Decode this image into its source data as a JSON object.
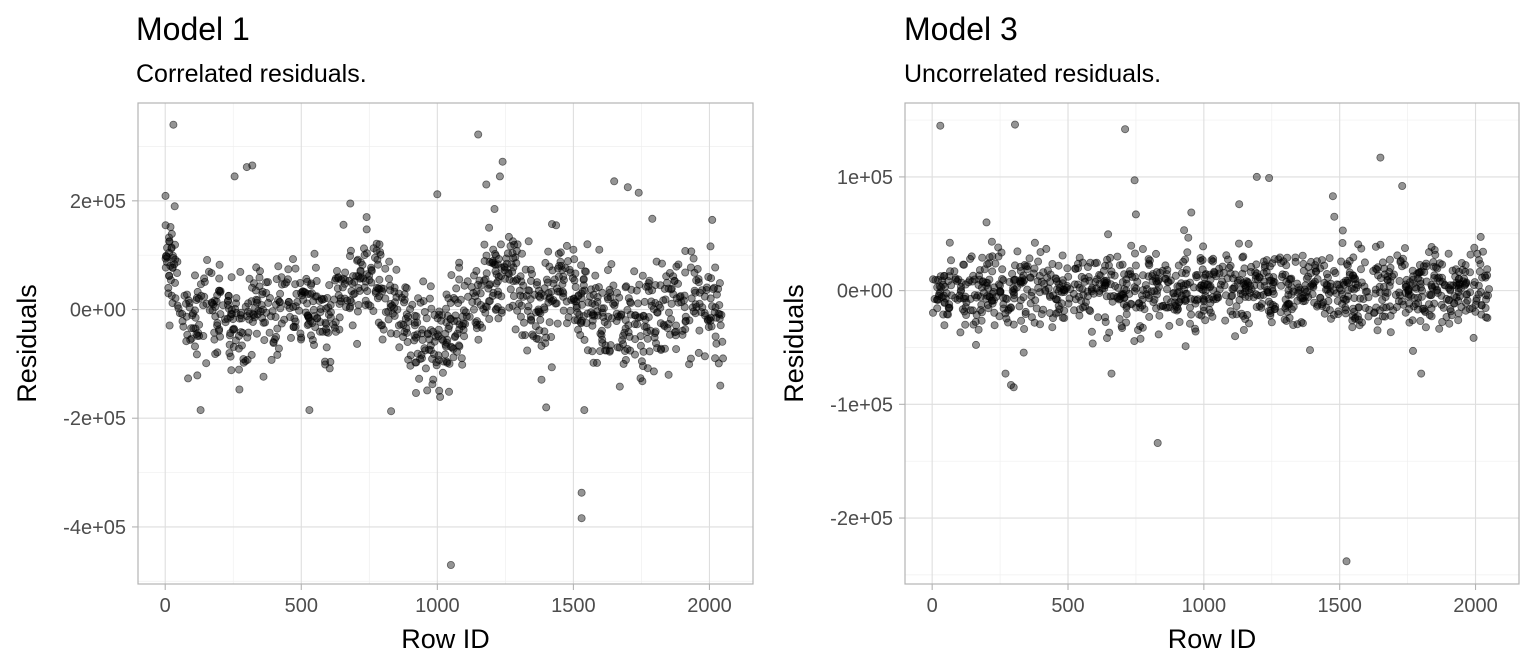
{
  "chart_data": [
    {
      "type": "scatter",
      "title": "Model 1",
      "subtitle": "Correlated residuals.",
      "xlabel": "Row ID",
      "ylabel": "Residuals",
      "xlim": [
        -100,
        2160
      ],
      "ylim": [
        -505000,
        380000
      ],
      "x_ticks": [
        0,
        500,
        1000,
        1500,
        2000
      ],
      "x_tick_labels": [
        "0",
        "500",
        "1000",
        "1500",
        "2000"
      ],
      "y_ticks": [
        200000,
        0,
        -200000,
        -400000
      ],
      "y_tick_labels": [
        "2e+05",
        "0e+00",
        "-2e+05",
        "-4e+05"
      ],
      "grid": true,
      "legend": "none",
      "point_color": "#000000",
      "highlighted_points": {
        "x": [
          30,
          35,
          255,
          300,
          320,
          1000,
          1150,
          1240,
          1050,
          1530,
          1530,
          130,
          530,
          830,
          1400,
          1540,
          1650,
          1700,
          1740,
          1790,
          1850,
          2010,
          2040,
          680,
          740,
          1180,
          1500,
          1230,
          1210
        ],
        "y": [
          340000,
          190000,
          245000,
          262000,
          265000,
          212000,
          322000,
          272000,
          -470000,
          -337000,
          -384000,
          -185000,
          -185000,
          -187000,
          -180000,
          -185000,
          236000,
          225000,
          215000,
          167000,
          -120000,
          165000,
          -140000,
          195000,
          170000,
          230000,
          110000,
          245000,
          185000
        ]
      },
      "bulk_series": {
        "x_range": [
          0,
          2050
        ],
        "n": 1100,
        "spread": 45000,
        "note_segments": 24
      }
    },
    {
      "type": "scatter",
      "title": "Model 3",
      "subtitle": "Uncorrelated residuals.",
      "xlabel": "Row ID",
      "ylabel": "Residuals",
      "xlim": [
        -100,
        2160
      ],
      "ylim": [
        -258000,
        165000
      ],
      "x_ticks": [
        0,
        500,
        1000,
        1500,
        2000
      ],
      "x_tick_labels": [
        "0",
        "500",
        "1000",
        "1500",
        "2000"
      ],
      "y_ticks": [
        100000,
        0,
        -100000,
        -200000
      ],
      "y_tick_labels": [
        "1e+05",
        "0e+00",
        "-1e+05",
        "-2e+05"
      ],
      "grid": true,
      "legend": "none",
      "point_color": "#000000",
      "highlighted_points": {
        "x": [
          30,
          305,
          710,
          745,
          1195,
          1240,
          1650,
          1730,
          1475,
          830,
          1525,
          270,
          290,
          300,
          660,
          1800,
          1130,
          1480,
          200,
          750,
          1770
        ],
        "y": [
          145000,
          146000,
          142000,
          97000,
          100000,
          99000,
          117000,
          92000,
          83000,
          -134000,
          -238000,
          -73000,
          -83000,
          -85000,
          -73000,
          -73000,
          76000,
          65000,
          60000,
          67000,
          -53000
        ]
      },
      "bulk_series": {
        "x_range": [
          0,
          2050
        ],
        "n": 1100,
        "spread": 17000,
        "note_segments": 1
      }
    }
  ]
}
